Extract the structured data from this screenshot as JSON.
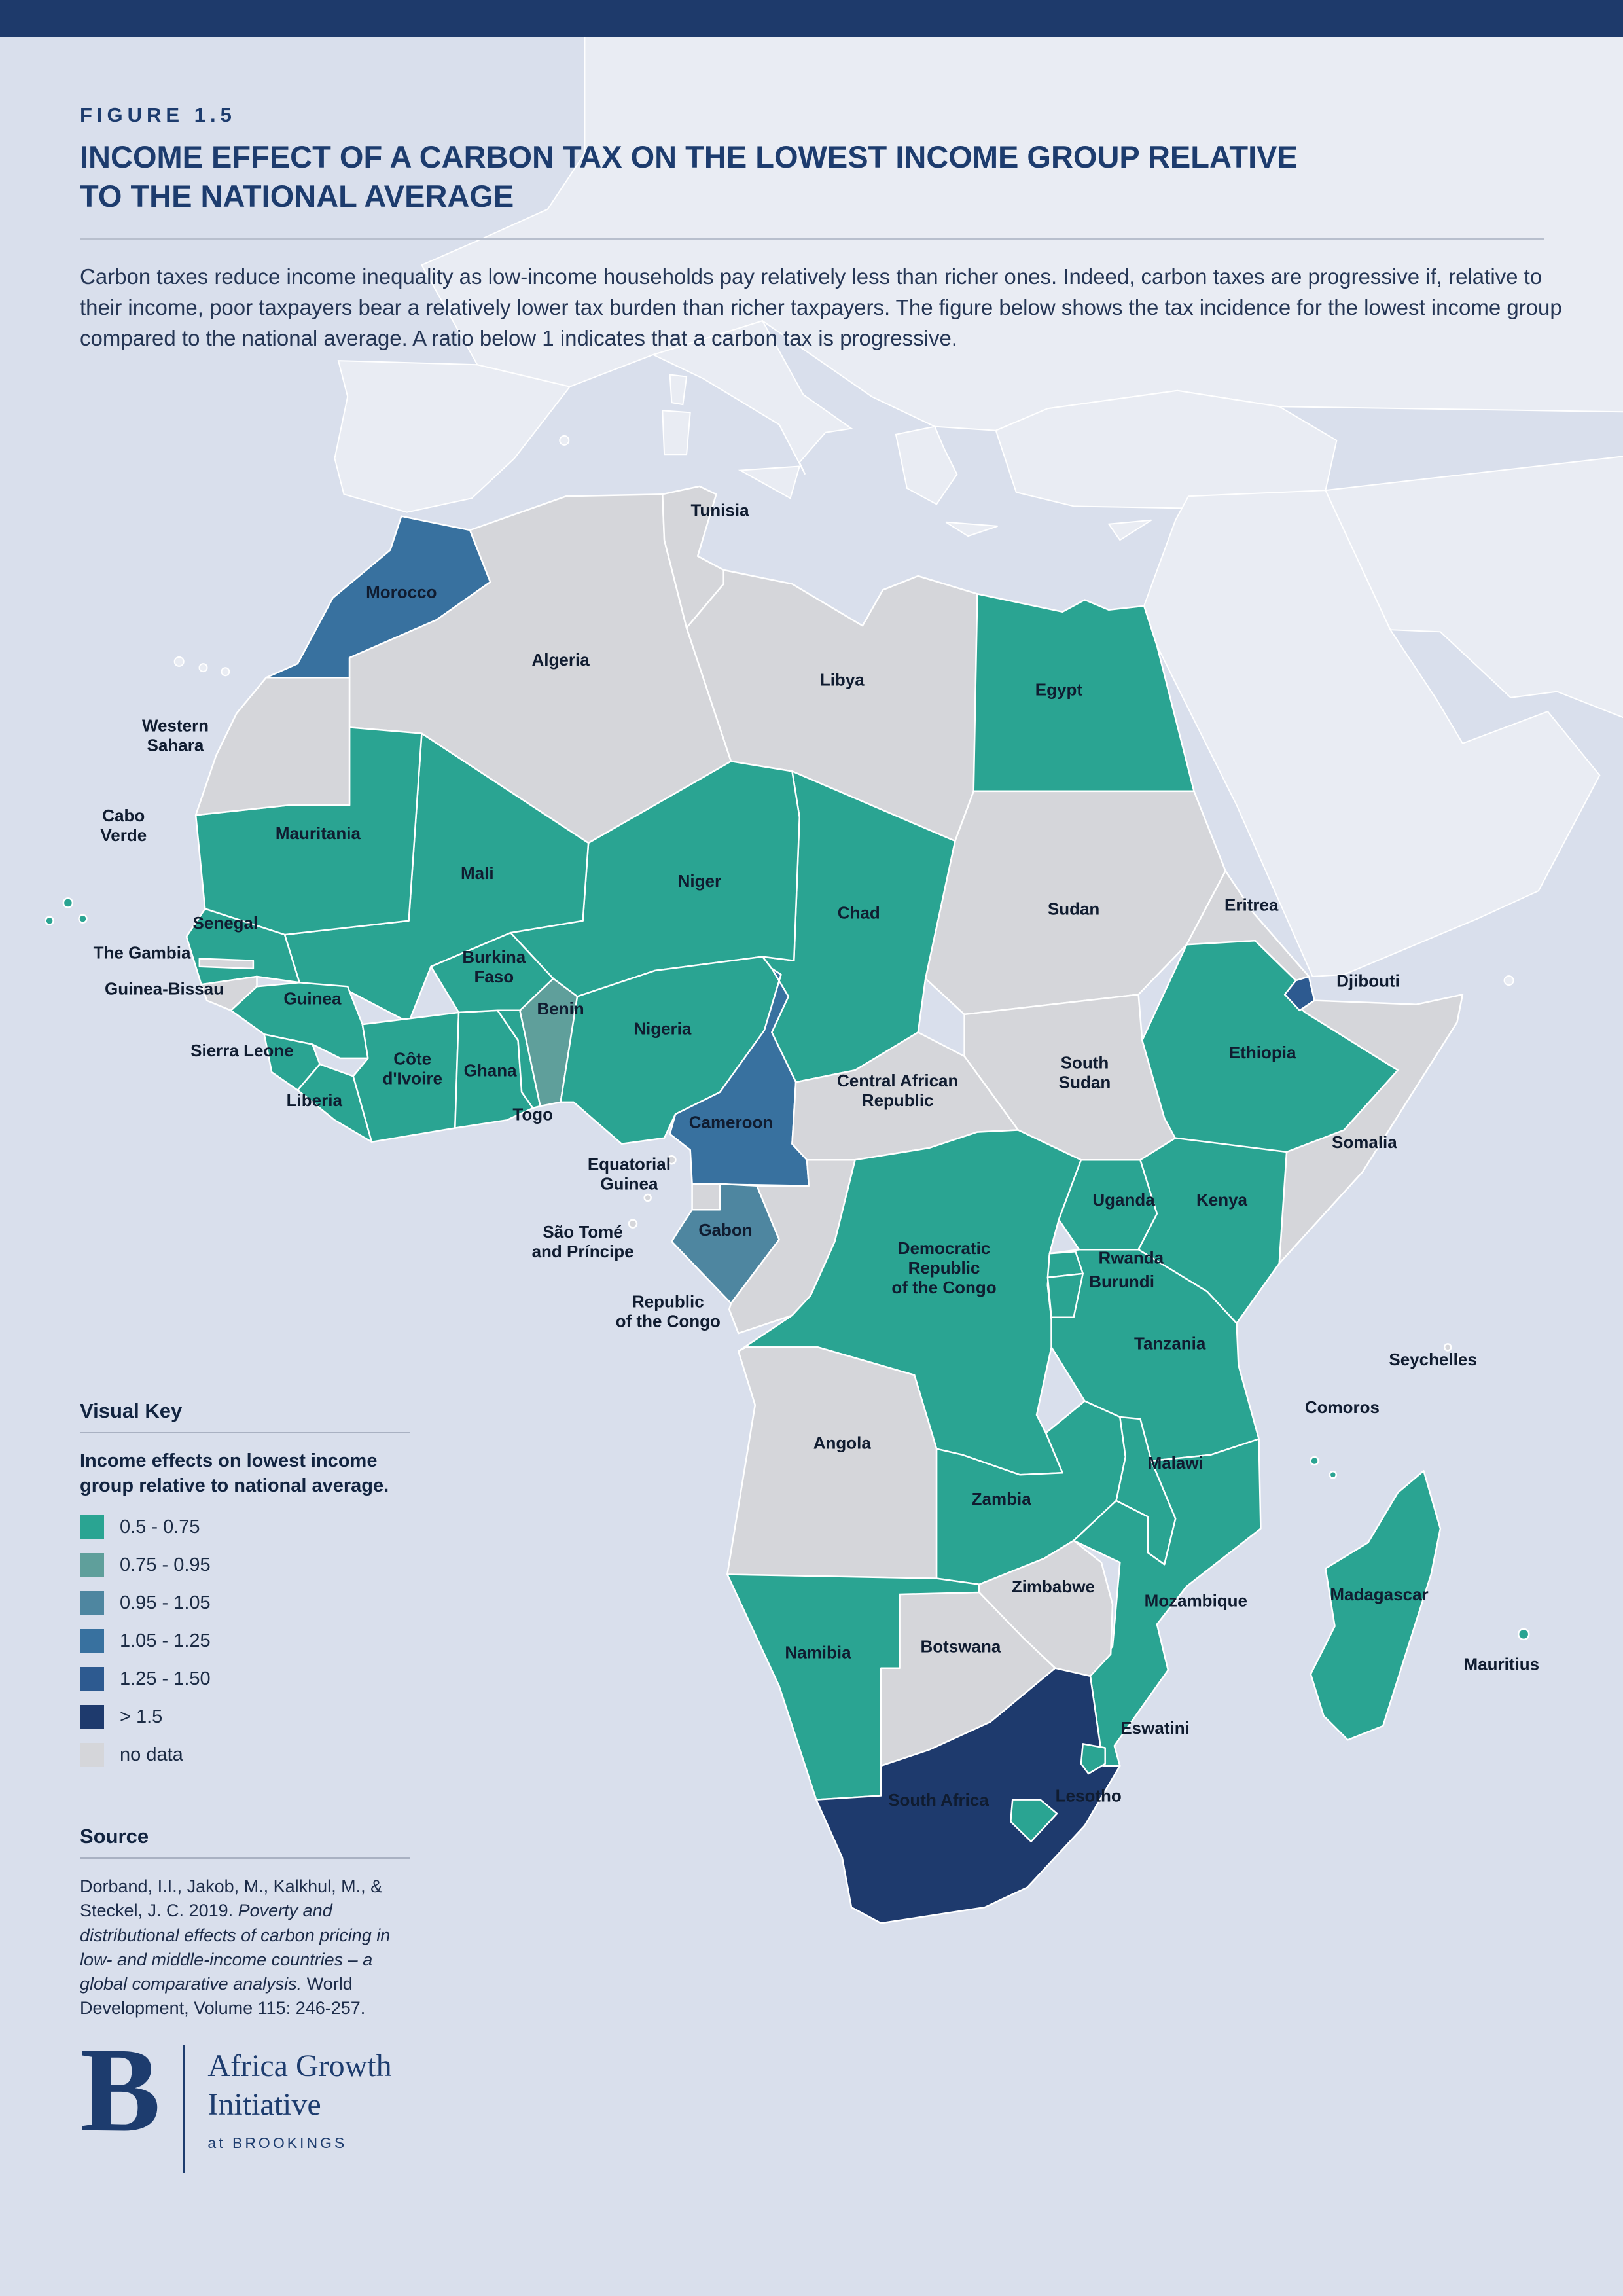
{
  "figure": {
    "eyebrow": "FIGURE 1.5",
    "title_line1": "INCOME EFFECT OF A CARBON TAX ON THE LOWEST INCOME GROUP RELATIVE",
    "title_line2": "TO THE NATIONAL AVERAGE",
    "description": "Carbon taxes reduce income inequality as low-income households pay relatively less than richer ones. Indeed, carbon taxes are progressive if, relative to their income, poor taxpayers bear a relatively lower tax burden than richer taxpayers. The figure below shows the tax incidence for the lowest income group compared to the national average. A ratio below 1 indicates that a carbon tax is progressive."
  },
  "legend": {
    "heading": "Visual Key",
    "subheading": "Income effects on lowest income group relative to national average.",
    "items": [
      {
        "label": "0.5 - 0.75",
        "color": "#2aa492"
      },
      {
        "label": "0.75 - 0.95",
        "color": "#5f9f9b"
      },
      {
        "label": "0.95 - 1.05",
        "color": "#4e86a0"
      },
      {
        "label": "1.05 - 1.25",
        "color": "#38719f"
      },
      {
        "label": "1.25 - 1.50",
        "color": "#2d5a90"
      },
      {
        "label": "> 1.5",
        "color": "#1e3a6d"
      },
      {
        "label": "no data",
        "color": "#d5d6da"
      }
    ]
  },
  "source": {
    "heading": "Source",
    "before_italic": "Dorband, I.I., Jakob, M., Kalkhul, M., & Steckel, J. C. 2019. ",
    "italic": "Poverty and distributional effects of carbon pricing in low- and middle-income countries – a global comparative analysis.",
    "after_italic": " World Development, Volume 115: 246-257."
  },
  "logo": {
    "letter": "B",
    "line1": "Africa Growth",
    "line2": "Initiative",
    "line3": "at BROOKINGS"
  },
  "chart_data": {
    "type": "choropleth_map",
    "region": "Africa",
    "title": "Income effect of a carbon tax on the lowest income group relative to the national average",
    "legend_categories": [
      "0.5 - 0.75",
      "0.75 - 0.95",
      "0.95 - 1.05",
      "1.05 - 1.25",
      "1.25 - 1.50",
      "> 1.5",
      "no data"
    ],
    "countries": [
      {
        "name": "Algeria",
        "category": "no data"
      },
      {
        "name": "Tunisia",
        "category": "no data"
      },
      {
        "name": "Libya",
        "category": "no data"
      },
      {
        "name": "Egypt",
        "category": "0.5 - 0.75"
      },
      {
        "name": "Sudan",
        "category": "no data"
      },
      {
        "name": "South Sudan",
        "category": "no data"
      },
      {
        "name": "Eritrea",
        "category": "no data"
      },
      {
        "name": "Somalia",
        "category": "no data"
      },
      {
        "name": "Chad",
        "category": "0.5 - 0.75"
      },
      {
        "name": "Niger",
        "category": "0.5 - 0.75"
      },
      {
        "name": "Mali",
        "category": "0.5 - 0.75"
      },
      {
        "name": "Mauritania",
        "category": "0.5 - 0.75"
      },
      {
        "name": "Western Sahara",
        "category": "no data"
      },
      {
        "name": "Morocco",
        "category": "1.05 - 1.25"
      },
      {
        "name": "Senegal",
        "category": "0.5 - 0.75"
      },
      {
        "name": "The Gambia",
        "category": "no data"
      },
      {
        "name": "Guinea-Bissau",
        "category": "no data"
      },
      {
        "name": "Guinea",
        "category": "0.5 - 0.75"
      },
      {
        "name": "Sierra Leone",
        "category": "0.5 - 0.75"
      },
      {
        "name": "Liberia",
        "category": "0.5 - 0.75"
      },
      {
        "name": "Côte d'Ivoire",
        "category": "0.5 - 0.75"
      },
      {
        "name": "Ghana",
        "category": "0.5 - 0.75"
      },
      {
        "name": "Togo",
        "category": "0.5 - 0.75"
      },
      {
        "name": "Benin",
        "category": "0.75 - 0.95"
      },
      {
        "name": "Burkina Faso",
        "category": "0.5 - 0.75"
      },
      {
        "name": "Nigeria",
        "category": "0.5 - 0.75"
      },
      {
        "name": "Cameroon",
        "category": "1.05 - 1.25"
      },
      {
        "name": "Central African Republic",
        "category": "no data"
      },
      {
        "name": "Ethiopia",
        "category": "0.5 - 0.75"
      },
      {
        "name": "Djibouti",
        "category": "1.25 - 1.50"
      },
      {
        "name": "Equatorial Guinea",
        "category": "no data"
      },
      {
        "name": "Gabon",
        "category": "0.95 - 1.05"
      },
      {
        "name": "Republic of the Congo",
        "category": "no data"
      },
      {
        "name": "Democratic Republic of the Congo",
        "category": "0.5 - 0.75"
      },
      {
        "name": "Uganda",
        "category": "0.5 - 0.75"
      },
      {
        "name": "Kenya",
        "category": "0.5 - 0.75"
      },
      {
        "name": "Tanzania",
        "category": "0.5 - 0.75"
      },
      {
        "name": "Rwanda",
        "category": "0.5 - 0.75"
      },
      {
        "name": "Burundi",
        "category": "0.5 - 0.75"
      },
      {
        "name": "Angola",
        "category": "no data"
      },
      {
        "name": "Zambia",
        "category": "0.5 - 0.75"
      },
      {
        "name": "Malawi",
        "category": "0.5 - 0.75"
      },
      {
        "name": "Mozambique",
        "category": "0.5 - 0.75"
      },
      {
        "name": "Zimbabwe",
        "category": "no data"
      },
      {
        "name": "Botswana",
        "category": "no data"
      },
      {
        "name": "Namibia",
        "category": "0.5 - 0.75"
      },
      {
        "name": "South Africa",
        "category": "> 1.5"
      },
      {
        "name": "Lesotho",
        "category": "0.5 - 0.75"
      },
      {
        "name": "Eswatini",
        "category": "0.5 - 0.75"
      },
      {
        "name": "Madagascar",
        "category": "0.5 - 0.75"
      },
      {
        "name": "Cabo Verde",
        "category": "0.5 - 0.75"
      },
      {
        "name": "São Tomé and Príncipe",
        "category": "no data"
      },
      {
        "name": "Comoros",
        "category": "0.5 - 0.75"
      },
      {
        "name": "Seychelles",
        "category": "no data"
      },
      {
        "name": "Mauritius",
        "category": "0.5 - 0.75"
      }
    ]
  }
}
